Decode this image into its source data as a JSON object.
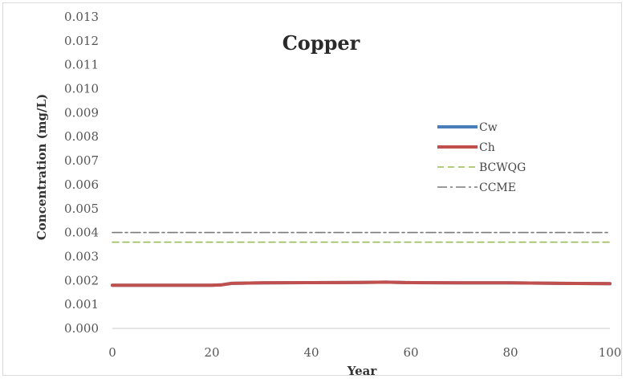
{
  "chart_data": {
    "type": "line",
    "title": "Copper",
    "xlabel": "Year",
    "ylabel": "Concentration (mg/L)",
    "xlim": [
      0,
      100
    ],
    "ylim": [
      0,
      0.013
    ],
    "x_ticks": [
      0,
      20,
      40,
      60,
      80,
      100
    ],
    "y_ticks": [
      "0.000",
      "0.001",
      "0.002",
      "0.003",
      "0.004",
      "0.005",
      "0.006",
      "0.007",
      "0.008",
      "0.009",
      "0.010",
      "0.011",
      "0.012",
      "0.013"
    ],
    "grid": false,
    "legend_position": "right",
    "series": [
      {
        "name": "Cw",
        "color": "#4a7ebb",
        "style": "solid",
        "x": [
          0,
          10,
          20,
          22,
          24,
          30,
          40,
          50,
          55,
          60,
          70,
          80,
          90,
          100
        ],
        "y": [
          0.0018,
          0.0018,
          0.0018,
          0.00182,
          0.00188,
          0.0019,
          0.00191,
          0.00192,
          0.00193,
          0.00191,
          0.0019,
          0.0019,
          0.00188,
          0.00187
        ]
      },
      {
        "name": "Ch",
        "color": "#c0504d",
        "style": "solid",
        "x": [
          0,
          10,
          20,
          22,
          24,
          30,
          40,
          50,
          55,
          60,
          70,
          80,
          90,
          100
        ],
        "y": [
          0.0018,
          0.0018,
          0.0018,
          0.00182,
          0.00188,
          0.0019,
          0.00191,
          0.00192,
          0.00193,
          0.00191,
          0.0019,
          0.0019,
          0.00188,
          0.00187
        ]
      },
      {
        "name": "BCWQG",
        "color": "#9bbb59",
        "style": "dashed",
        "x": [
          0,
          100
        ],
        "y": [
          0.0036,
          0.0036
        ]
      },
      {
        "name": "CCME",
        "color": "#7a7a7a",
        "style": "dashdot",
        "x": [
          0,
          100
        ],
        "y": [
          0.004,
          0.004
        ]
      }
    ]
  }
}
